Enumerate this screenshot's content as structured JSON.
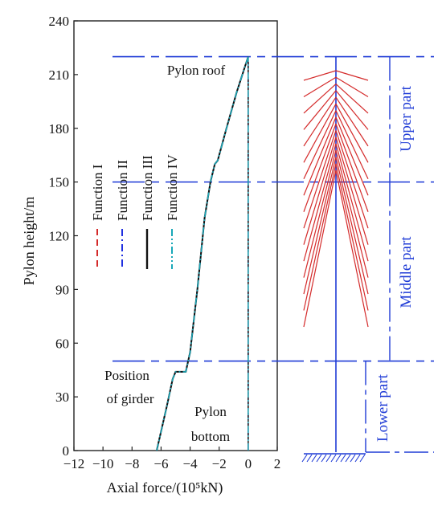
{
  "chart_data": {
    "type": "line",
    "xlabel": "Axial force/(10⁵kN)",
    "ylabel": "Pylon height/m",
    "xlim": [
      -12,
      2
    ],
    "ylim": [
      0,
      240
    ],
    "xticks": [
      -12,
      -10,
      -8,
      -6,
      -4,
      -2,
      0,
      2
    ],
    "yticks": [
      0,
      30,
      60,
      90,
      120,
      150,
      180,
      210,
      240
    ],
    "grid": false,
    "legend_position": "upper-left, rotated",
    "series": [
      {
        "name": "Function I",
        "color": "#d42a2a",
        "dash": "dashed",
        "points": [
          [
            -6.3,
            0
          ],
          [
            -5.6,
            25
          ],
          [
            -5.2,
            40
          ],
          [
            -5.0,
            44
          ],
          [
            -4.3,
            44
          ],
          [
            -4.0,
            55
          ],
          [
            -3.5,
            90
          ],
          [
            -3.0,
            130
          ],
          [
            -2.6,
            150
          ],
          [
            -2.3,
            160
          ],
          [
            -2.1,
            162
          ],
          [
            -1.5,
            180
          ],
          [
            -0.8,
            200
          ],
          [
            -0.2,
            215
          ],
          [
            0,
            220
          ]
        ]
      },
      {
        "name": "Function II",
        "color": "#2030e0",
        "dash": "dashdot",
        "points": [
          [
            -6.3,
            0
          ],
          [
            -5.6,
            25
          ],
          [
            -5.2,
            40
          ],
          [
            -5.0,
            44
          ],
          [
            -4.3,
            44
          ],
          [
            -4.0,
            55
          ],
          [
            -3.5,
            90
          ],
          [
            -3.0,
            130
          ],
          [
            -2.6,
            150
          ],
          [
            -2.3,
            160
          ],
          [
            -2.1,
            162
          ],
          [
            -1.5,
            180
          ],
          [
            -0.8,
            200
          ],
          [
            -0.2,
            215
          ],
          [
            0,
            220
          ]
        ]
      },
      {
        "name": "Function III",
        "color": "#111111",
        "dash": "solid",
        "points": [
          [
            -6.3,
            0
          ],
          [
            -5.6,
            25
          ],
          [
            -5.2,
            40
          ],
          [
            -5.0,
            44
          ],
          [
            -4.3,
            44
          ],
          [
            -4.0,
            55
          ],
          [
            -3.5,
            90
          ],
          [
            -3.0,
            130
          ],
          [
            -2.6,
            150
          ],
          [
            -2.3,
            160
          ],
          [
            -2.1,
            162
          ],
          [
            -1.5,
            180
          ],
          [
            -0.8,
            200
          ],
          [
            -0.2,
            215
          ],
          [
            0,
            220
          ]
        ]
      },
      {
        "name": "Function IV",
        "color": "#1aa8b8",
        "dash": "dashdotdot",
        "points": [
          [
            -6.3,
            0
          ],
          [
            -5.6,
            25
          ],
          [
            -5.2,
            40
          ],
          [
            -5.0,
            44
          ],
          [
            -4.3,
            44
          ],
          [
            -4.0,
            55
          ],
          [
            -3.5,
            90
          ],
          [
            -3.0,
            130
          ],
          [
            -2.6,
            150
          ],
          [
            -2.3,
            160
          ],
          [
            -2.1,
            162
          ],
          [
            -1.5,
            180
          ],
          [
            -0.8,
            200
          ],
          [
            -0.2,
            215
          ],
          [
            0,
            220
          ]
        ]
      }
    ],
    "annotations": {
      "pylon_roof": "Pylon roof",
      "position_line1": "Position",
      "position_line2": "of girder",
      "bottom_line1": "Pylon",
      "bottom_line2": "bottom"
    },
    "reference_heights": [
      220,
      150,
      50
    ],
    "parts": [
      "Upper part",
      "Middle part",
      "Lower part"
    ],
    "diagram_colors": {
      "cables": "#d42a2a",
      "guide_lines": "#1f3bd6",
      "pylon": "#1f3bd6"
    }
  }
}
